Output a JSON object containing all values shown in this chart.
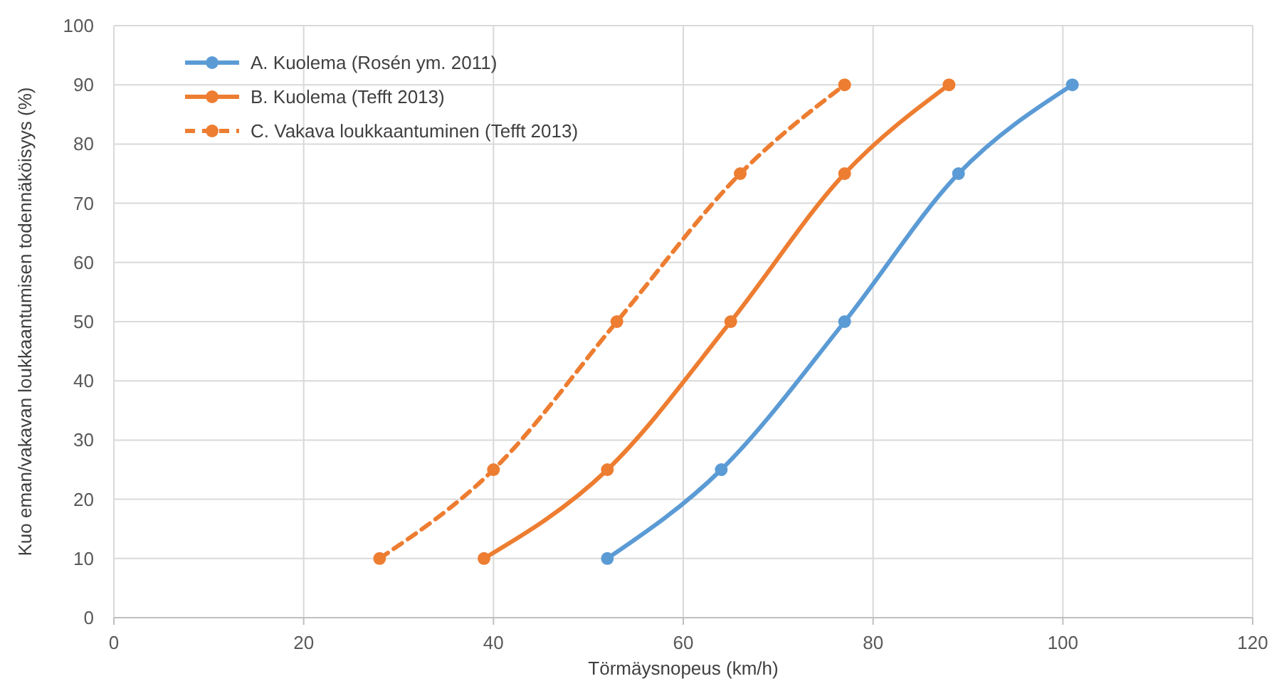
{
  "chart_data": {
    "type": "line",
    "xlabel": "Törmäysnopeus (km/h)",
    "ylabel": "Kuo eman/vakavan loukkaantumisen todennäköisyys  (%)",
    "xlim": [
      0,
      120
    ],
    "xticks": [
      0,
      20,
      40,
      60,
      80,
      100,
      120
    ],
    "ylim": [
      0,
      100
    ],
    "yticks": [
      0,
      10,
      20,
      30,
      40,
      50,
      60,
      70,
      80,
      90,
      100
    ],
    "grid": true,
    "legend": "top left",
    "marker": "circle",
    "series": [
      {
        "name": "A. Kuolema (Rosén ym. 2011)",
        "color": "#5b9bd5",
        "x": [
          52,
          64,
          77,
          89,
          101
        ],
        "values": [
          10,
          25,
          50,
          75,
          90
        ],
        "line_style": "solid"
      },
      {
        "name": "B. Kuolema (Tefft 2013)",
        "color": "#ed7d31",
        "x": [
          39,
          52,
          65,
          77,
          88
        ],
        "values": [
          10,
          25,
          50,
          75,
          90
        ],
        "line_style": "solid"
      },
      {
        "name": "C. Vakava loukkaantuminen (Tefft 2013)",
        "color": "#ed7d31",
        "x": [
          28,
          40,
          53,
          66,
          77
        ],
        "values": [
          10,
          25,
          50,
          75,
          90
        ],
        "line_style": "dashed"
      }
    ]
  }
}
